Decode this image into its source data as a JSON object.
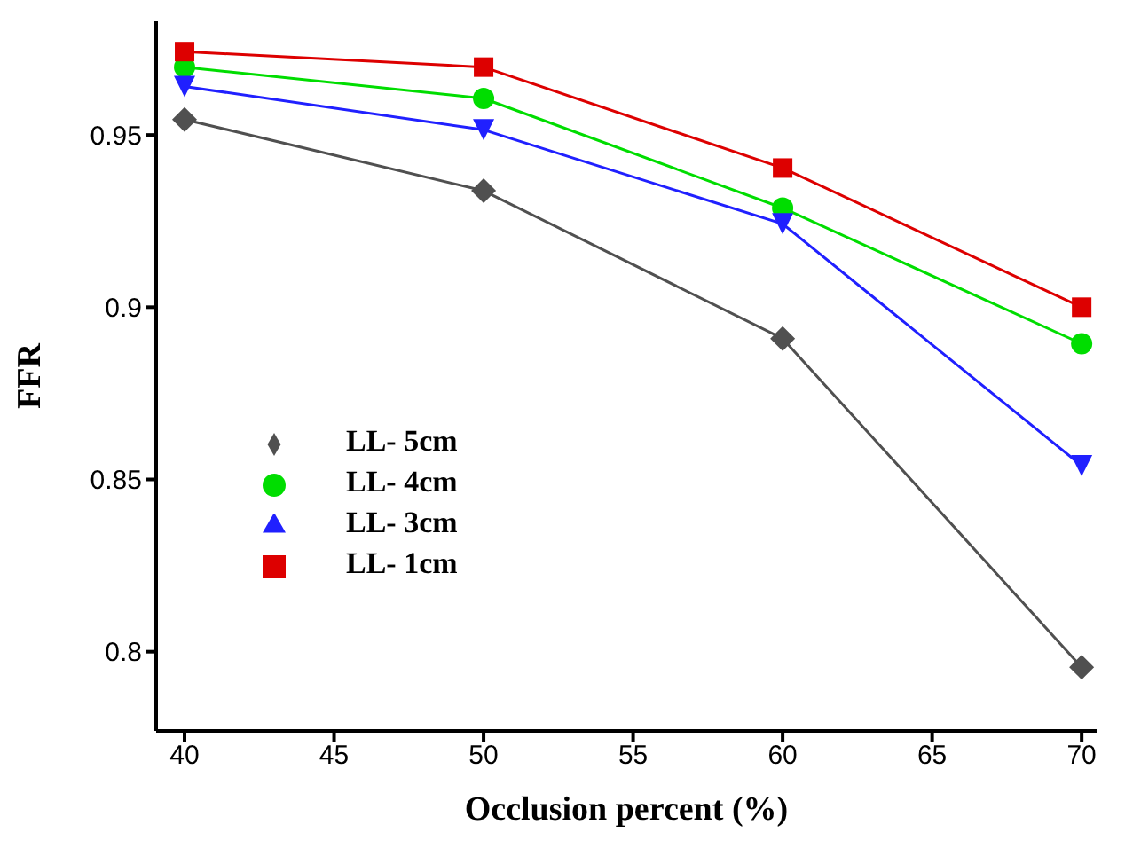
{
  "chart_data": {
    "type": "line",
    "xlabel": "Occlusion percent (%)",
    "ylabel": "FFR",
    "x": [
      40,
      50,
      60,
      70
    ],
    "series": [
      {
        "name": "LL- 5cm",
        "color": "#505050",
        "marker": "diamond",
        "values": [
          0.9545,
          0.9338,
          0.8909,
          0.7955
        ]
      },
      {
        "name": "LL- 4cm",
        "color": "#00dd00",
        "marker": "circle",
        "values": [
          0.9697,
          0.9606,
          0.9288,
          0.8894
        ]
      },
      {
        "name": "LL- 3cm",
        "color": "#2020ff",
        "marker": "triangle",
        "values": [
          0.9641,
          0.9515,
          0.9242,
          0.854
        ]
      },
      {
        "name": "LL- 1cm",
        "color": "#dd0000",
        "marker": "square",
        "values": [
          0.9742,
          0.9697,
          0.9404,
          0.9
        ]
      }
    ],
    "xlim": [
      39.05,
      70.5
    ],
    "xticks": [
      40,
      45,
      50,
      55,
      60,
      65,
      70
    ],
    "ylim": [
      0.777,
      0.983
    ],
    "yticks": [
      0.8,
      0.85,
      0.9,
      0.95
    ],
    "grid": false,
    "legend": "left",
    "line_style": "solid"
  }
}
